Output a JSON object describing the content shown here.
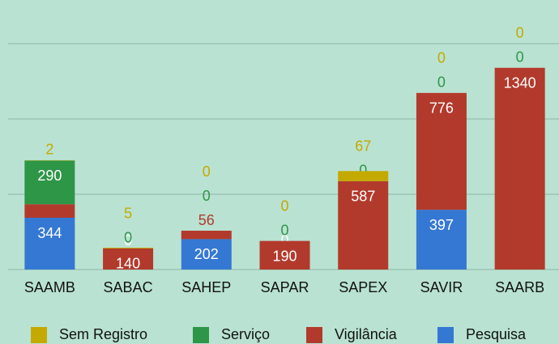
{
  "chart_data": {
    "type": "bar",
    "stacked": true,
    "categories": [
      "SAAMB",
      "SABAC",
      "SAHEP",
      "SAPAR",
      "SAPEX",
      "SAVIR",
      "SAARB"
    ],
    "series": [
      {
        "name": "Sem Registro",
        "color": "#c4a900",
        "values": [
          2,
          5,
          0,
          0,
          67,
          0,
          0
        ]
      },
      {
        "name": "Serviço",
        "color": "#2e9647",
        "values": [
          290,
          0,
          0,
          0,
          0,
          0,
          0
        ]
      },
      {
        "name": "Vigilância",
        "color": "#b23a2c",
        "values": [
          90,
          140,
          56,
          190,
          587,
          776,
          1340
        ]
      },
      {
        "name": "Pesquisa",
        "color": "#3578d3",
        "values": [
          344,
          0,
          202,
          0,
          0,
          397,
          0
        ]
      }
    ],
    "ylim": [
      0,
      1500
    ],
    "yticks": [
      0,
      500,
      1000,
      1500
    ],
    "grid": true,
    "legend": "bottom"
  }
}
